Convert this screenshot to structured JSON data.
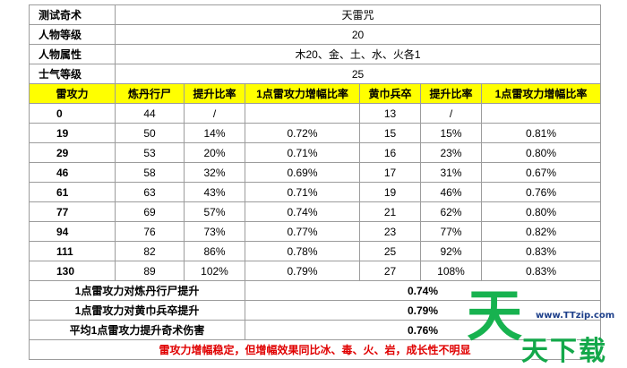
{
  "info_rows": [
    {
      "label": "测试奇术",
      "value": "天雷咒"
    },
    {
      "label": "人物等级",
      "value": "20"
    },
    {
      "label": "人物属性",
      "value": "木20、金、土、水、火各1"
    },
    {
      "label": "士气等级",
      "value": "25"
    }
  ],
  "headers": [
    "雷攻力",
    "炼丹行尸",
    "提升比率",
    "1点雷攻力增幅比率",
    "黄巾兵卒",
    "提升比率",
    "1点雷攻力增幅比率"
  ],
  "rows": [
    [
      "0",
      "44",
      "/",
      "",
      "13",
      "/",
      ""
    ],
    [
      "19",
      "50",
      "14%",
      "0.72%",
      "15",
      "15%",
      "0.81%"
    ],
    [
      "29",
      "53",
      "20%",
      "0.71%",
      "16",
      "23%",
      "0.80%"
    ],
    [
      "46",
      "58",
      "32%",
      "0.69%",
      "17",
      "31%",
      "0.67%"
    ],
    [
      "61",
      "63",
      "43%",
      "0.71%",
      "19",
      "46%",
      "0.76%"
    ],
    [
      "77",
      "69",
      "57%",
      "0.74%",
      "21",
      "62%",
      "0.80%"
    ],
    [
      "94",
      "76",
      "73%",
      "0.77%",
      "23",
      "77%",
      "0.82%"
    ],
    [
      "111",
      "82",
      "86%",
      "0.78%",
      "25",
      "92%",
      "0.83%"
    ],
    [
      "130",
      "89",
      "102%",
      "0.79%",
      "27",
      "108%",
      "0.83%"
    ]
  ],
  "summary": [
    {
      "label": "1点雷攻力对炼丹行尸提升",
      "value": "0.74%"
    },
    {
      "label": "1点雷攻力对黄巾兵卒提升",
      "value": "0.79%"
    },
    {
      "label": "平均1点雷攻力提升奇术伤害",
      "value": "0.76%"
    }
  ],
  "note": "雷攻力增幅稳定，但增幅效果同比冰、毒、火、岩，成长性不明显",
  "watermark": {
    "big": "天",
    "text": "天下载",
    "url": "www.TTzip.com"
  },
  "colors": {
    "header_bg": "#ffff00",
    "note_text": "#e00000",
    "watermark": "#17b24f"
  }
}
